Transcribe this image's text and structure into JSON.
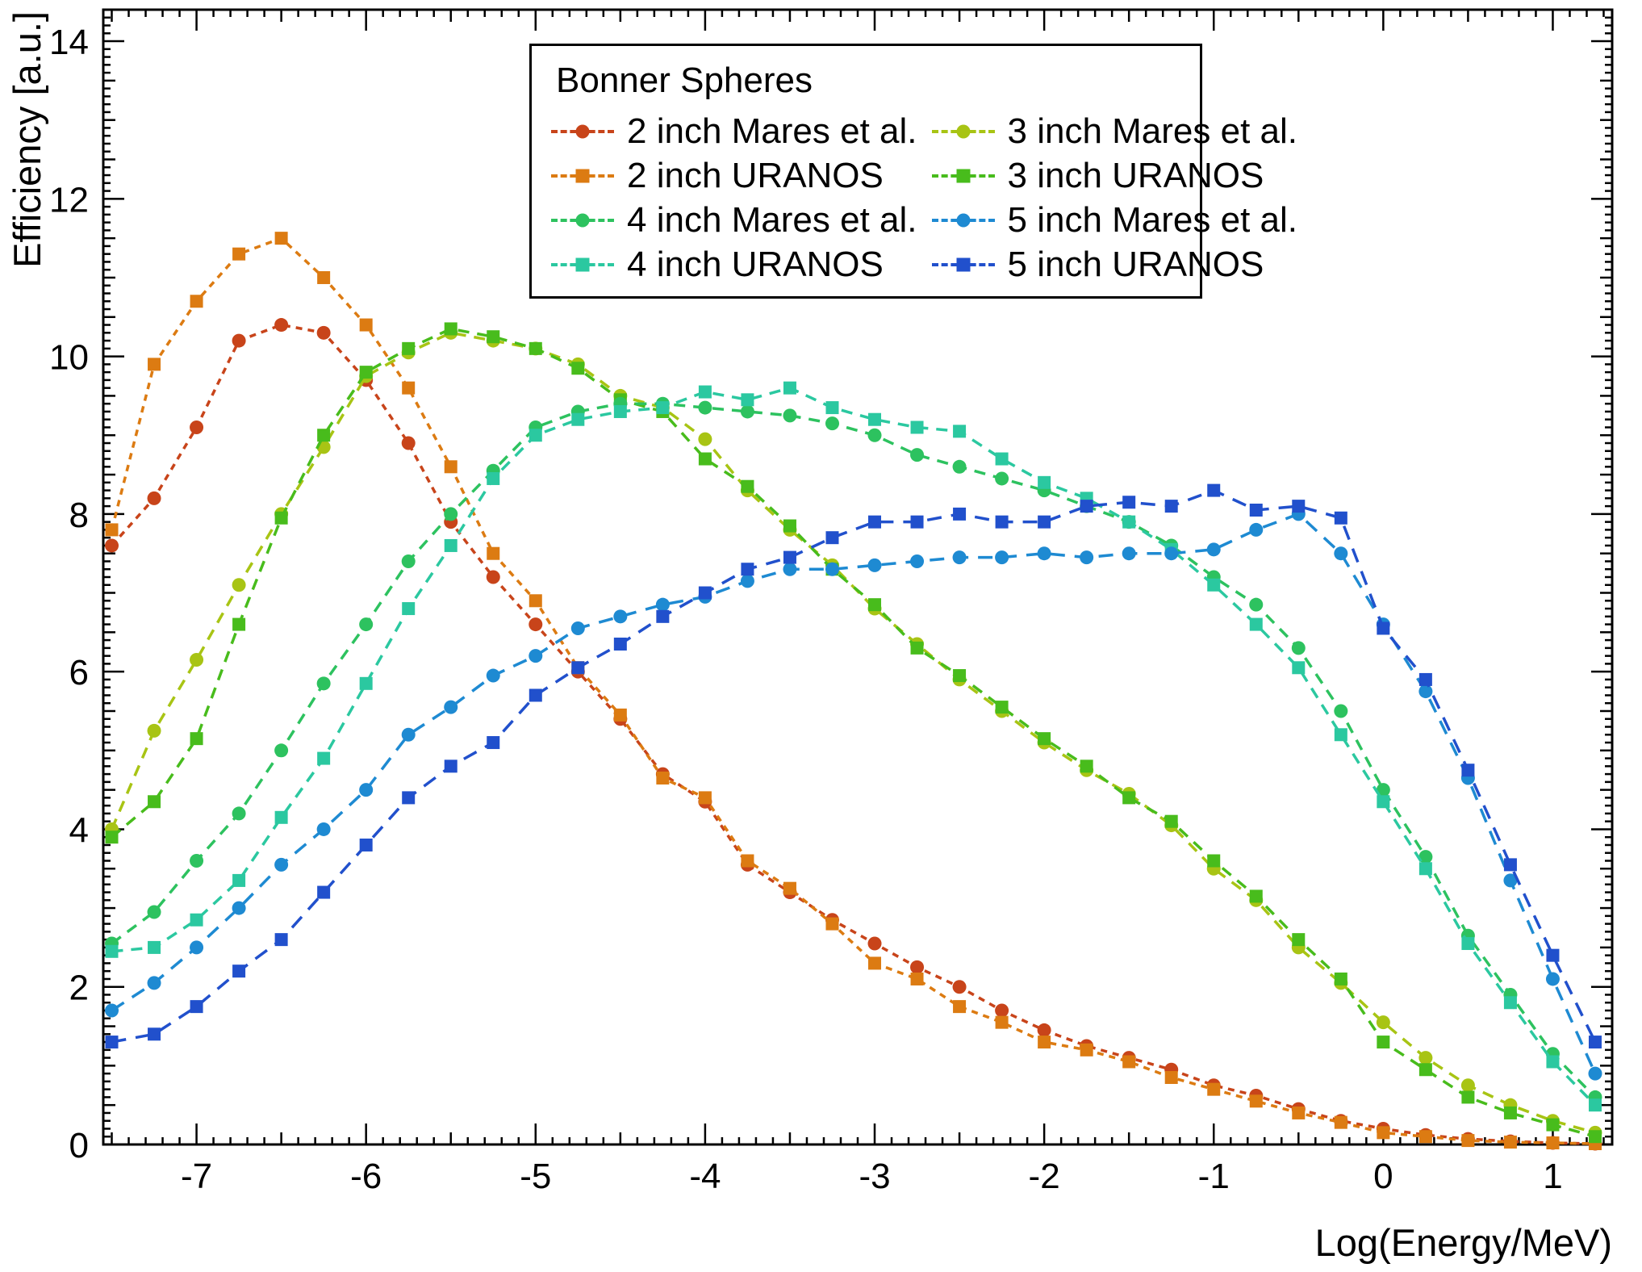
{
  "legend": {
    "title": "Bonner Spheres"
  },
  "chart_data": {
    "type": "line",
    "title": "",
    "xlabel": "Log(Energy/MeV)",
    "ylabel": "Efficiency [a.u.]",
    "xlim": [
      -7.55,
      1.35
    ],
    "ylim": [
      0,
      14.4
    ],
    "xticks": [
      -7,
      -6,
      -5,
      -4,
      -3,
      -2,
      -1,
      0,
      1
    ],
    "yticks": [
      0,
      2,
      4,
      6,
      8,
      10,
      12,
      14
    ],
    "grid": false,
    "legend_position": "top-center",
    "x": [
      -7.5,
      -7.25,
      -7.0,
      -6.75,
      -6.5,
      -6.25,
      -6.0,
      -5.75,
      -5.5,
      -5.25,
      -5.0,
      -4.75,
      -4.5,
      -4.25,
      -4.0,
      -3.75,
      -3.5,
      -3.25,
      -3.0,
      -2.75,
      -2.5,
      -2.25,
      -2.0,
      -1.75,
      -1.5,
      -1.25,
      -1.0,
      -0.75,
      -0.5,
      -0.25,
      0.0,
      0.25,
      0.5,
      0.75,
      1.0,
      1.25
    ],
    "series": [
      {
        "name": "2 inch Mares et al.",
        "marker": "circle",
        "color": "#c8441a",
        "dash": "8 7",
        "values": [
          7.6,
          8.2,
          9.1,
          10.2,
          10.4,
          10.3,
          9.7,
          8.9,
          7.9,
          7.2,
          6.6,
          6.0,
          5.4,
          4.7,
          4.35,
          3.55,
          3.2,
          2.85,
          2.55,
          2.25,
          2.0,
          1.7,
          1.45,
          1.25,
          1.1,
          0.95,
          0.75,
          0.62,
          0.45,
          0.3,
          0.2,
          0.12,
          0.07,
          0.04,
          0.02,
          0.01
        ]
      },
      {
        "name": "2 inch URANOS",
        "marker": "square",
        "color": "#dc7b12",
        "dash": "8 7",
        "values": [
          7.8,
          9.9,
          10.7,
          11.3,
          11.5,
          11.0,
          10.4,
          9.6,
          8.6,
          7.5,
          6.9,
          6.05,
          5.45,
          4.65,
          4.4,
          3.6,
          3.25,
          2.8,
          2.3,
          2.1,
          1.75,
          1.55,
          1.3,
          1.2,
          1.05,
          0.85,
          0.7,
          0.55,
          0.4,
          0.28,
          0.15,
          0.1,
          0.05,
          0.03,
          0.02,
          0.01
        ]
      },
      {
        "name": "3 inch Mares et al.",
        "marker": "circle",
        "color": "#a8c414",
        "dash": "14 10",
        "values": [
          4.0,
          5.25,
          6.15,
          7.1,
          8.0,
          8.85,
          9.75,
          10.05,
          10.3,
          10.2,
          10.1,
          9.9,
          9.5,
          9.35,
          8.95,
          8.3,
          7.8,
          7.35,
          6.8,
          6.35,
          5.9,
          5.5,
          5.1,
          4.75,
          4.45,
          4.05,
          3.5,
          3.1,
          2.5,
          2.05,
          1.55,
          1.1,
          0.75,
          0.5,
          0.3,
          0.15
        ]
      },
      {
        "name": "3 inch URANOS",
        "marker": "square",
        "color": "#48bc1c",
        "dash": "14 10",
        "values": [
          3.9,
          4.35,
          5.15,
          6.6,
          7.95,
          9.0,
          9.8,
          10.1,
          10.35,
          10.25,
          10.1,
          9.85,
          9.45,
          9.3,
          8.7,
          8.35,
          7.85,
          7.3,
          6.85,
          6.3,
          5.95,
          5.55,
          5.15,
          4.8,
          4.4,
          4.1,
          3.6,
          3.15,
          2.6,
          2.1,
          1.3,
          0.95,
          0.6,
          0.4,
          0.25,
          0.1
        ]
      },
      {
        "name": "4 inch Mares et al.",
        "marker": "circle",
        "color": "#2dc25f",
        "dash": "14 10",
        "values": [
          2.55,
          2.95,
          3.6,
          4.2,
          5.0,
          5.85,
          6.6,
          7.4,
          8.0,
          8.55,
          9.1,
          9.3,
          9.4,
          9.4,
          9.35,
          9.3,
          9.25,
          9.15,
          9.0,
          8.75,
          8.6,
          8.45,
          8.3,
          8.1,
          7.9,
          7.6,
          7.2,
          6.85,
          6.3,
          5.5,
          4.5,
          3.65,
          2.65,
          1.9,
          1.15,
          0.6
        ]
      },
      {
        "name": "4 inch URANOS",
        "marker": "square",
        "color": "#2bc8a0",
        "dash": "14 10",
        "values": [
          2.45,
          2.5,
          2.85,
          3.35,
          4.15,
          4.9,
          5.85,
          6.8,
          7.6,
          8.45,
          9.0,
          9.2,
          9.3,
          9.35,
          9.55,
          9.45,
          9.6,
          9.35,
          9.2,
          9.1,
          9.05,
          8.7,
          8.4,
          8.2,
          7.9,
          7.55,
          7.1,
          6.6,
          6.05,
          5.2,
          4.35,
          3.5,
          2.55,
          1.8,
          1.05,
          0.5
        ]
      },
      {
        "name": "5 inch Mares et al.",
        "marker": "circle",
        "color": "#1e8ad2",
        "dash": "18 12",
        "values": [
          1.7,
          2.05,
          2.5,
          3.0,
          3.55,
          4.0,
          4.5,
          5.2,
          5.55,
          5.95,
          6.2,
          6.55,
          6.7,
          6.85,
          6.95,
          7.15,
          7.3,
          7.3,
          7.35,
          7.4,
          7.45,
          7.45,
          7.5,
          7.45,
          7.5,
          7.5,
          7.55,
          7.8,
          8.0,
          7.5,
          6.6,
          5.75,
          4.65,
          3.35,
          2.1,
          0.9
        ]
      },
      {
        "name": "5 inch URANOS",
        "marker": "square",
        "color": "#2150cc",
        "dash": "18 12",
        "values": [
          1.3,
          1.4,
          1.75,
          2.2,
          2.6,
          3.2,
          3.8,
          4.4,
          4.8,
          5.1,
          5.7,
          6.05,
          6.35,
          6.7,
          7.0,
          7.3,
          7.45,
          7.7,
          7.9,
          7.9,
          8.0,
          7.9,
          7.9,
          8.1,
          8.15,
          8.1,
          8.3,
          8.05,
          8.1,
          7.95,
          6.55,
          5.9,
          4.75,
          3.55,
          2.4,
          1.3
        ]
      }
    ]
  }
}
